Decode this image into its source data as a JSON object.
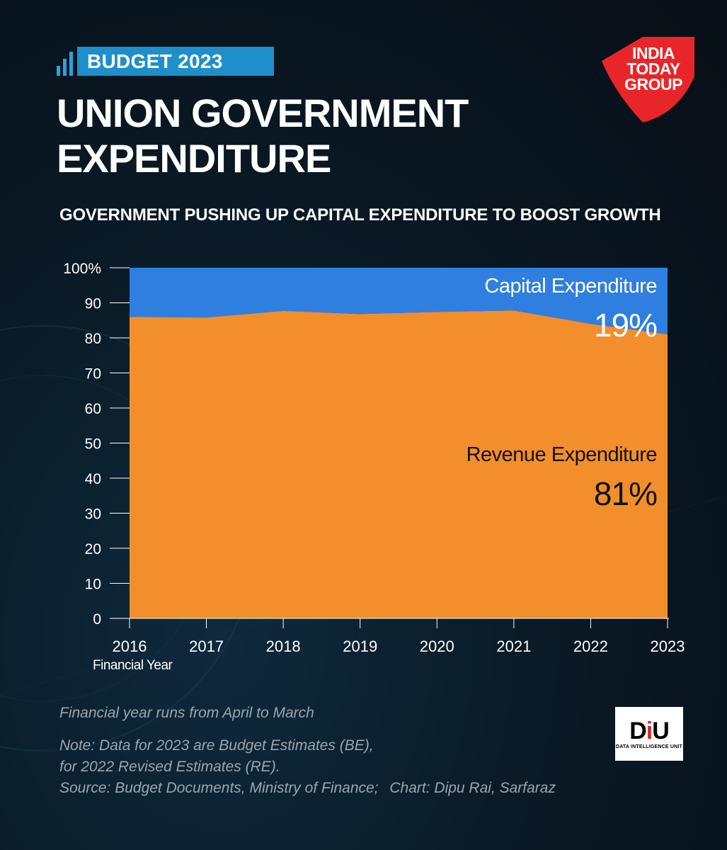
{
  "header": {
    "tag": "BUDGET 2023",
    "title": "UNION GOVERNMENT EXPENDITURE",
    "subtitle": "GOVERNMENT PUSHING UP CAPITAL EXPENDITURE  TO BOOST GROWTH"
  },
  "logo": {
    "text": "INDIA TODAY GROUP",
    "color": "#e8262a"
  },
  "chart_data": {
    "type": "area",
    "stacked": true,
    "x": [
      2016,
      2017,
      2018,
      2019,
      2020,
      2021,
      2022,
      2023
    ],
    "x_tick_labels": [
      "2016",
      "2017",
      "2018",
      "2019",
      "2020",
      "2021",
      "2022",
      "2023"
    ],
    "xlabel": "Financial Year",
    "ylabel": "",
    "ylim": [
      0,
      100
    ],
    "y_tick_labels": [
      "0",
      "10",
      "20",
      "30",
      "40",
      "50",
      "60",
      "70",
      "80",
      "90",
      "100%"
    ],
    "y_ticks": [
      0,
      10,
      20,
      30,
      40,
      50,
      60,
      70,
      80,
      90,
      100
    ],
    "grid": false,
    "series": [
      {
        "name": "Revenue Expenditure",
        "values": [
          86,
          85.8,
          87.7,
          86.8,
          87.4,
          87.8,
          84,
          81
        ],
        "color": "#f28e2b",
        "label_value": "81"
      },
      {
        "name": "Capital Expenditure",
        "values": [
          14,
          14.2,
          12.3,
          13.2,
          12.6,
          12.2,
          16,
          19
        ],
        "color": "#2f7fe0",
        "label_value": "19"
      }
    ],
    "percent_sign": "%"
  },
  "footer": {
    "note1": "Financial year runs from April to March",
    "note2": "Note: Data for 2023 are Budget Estimates (BE),",
    "note3": "for 2022 Revised Estimates (RE).",
    "source": "Source: Budget Documents, Ministry of Finance;",
    "credit": "Chart: Dipu Rai, Sarfaraz"
  },
  "diu": {
    "mark_d": "D",
    "mark_i": "i",
    "mark_u": "U",
    "subtitle": "DATA INTELLIGENCE UNIT"
  }
}
